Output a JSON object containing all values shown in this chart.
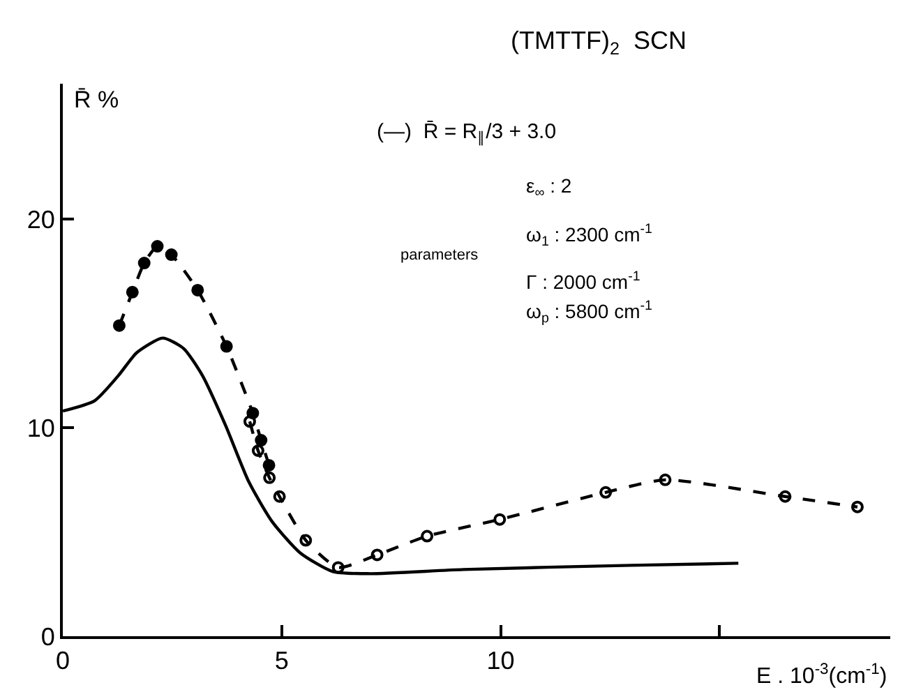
{
  "chart_data": {
    "type": "line",
    "title": "(TMTTF)$_{2}$  SCN",
    "xlabel": "E . 10$^{-3}$(cm$^{-1}$)",
    "ylabel": "R̄ %",
    "annotations": [
      "(—)  R̄ = R$_{∥}$/3 + 3.0",
      "parameters",
      "ε$_{∞}$ : 2",
      "ω$_{1}$ : 2300 cm$^{-1}$",
      "Γ : 2000 cm$^{-1}$",
      "ω$_{p}$ : 5800 cm$^{-1}$"
    ],
    "xlim": [
      0,
      18.9
    ],
    "ylim": [
      0,
      26.5
    ],
    "xticks": [
      0,
      5,
      10,
      {
        "value": 15,
        "label": null
      }
    ],
    "yticks": [
      0,
      10,
      20
    ],
    "series": [
      {
        "color": "#000000",
        "type": "line",
        "line_style": "solid",
        "marker": "none",
        "x": [
          0,
          0.73,
          1.27,
          1.69,
          2.28,
          2.76,
          3.19,
          3.72,
          4.25,
          4.78,
          5.42,
          6.17,
          7.02,
          9.15,
          12.98,
          15.43
        ],
        "values": [
          10.8,
          11.3,
          12.5,
          13.6,
          14.3,
          13.8,
          12.5,
          10.1,
          7.4,
          5.5,
          4.0,
          3.1,
          3.0,
          3.2,
          3.4,
          3.5
        ]
      },
      {
        "color": "#000000",
        "line_style": "dashed",
        "marker": "circle",
        "x": [
          1.29,
          1.59,
          1.86,
          2.16,
          2.48,
          3.08,
          3.74,
          4.34,
          4.53,
          4.71
        ],
        "values": [
          14.9,
          16.5,
          17.9,
          18.7,
          18.3,
          16.6,
          13.9,
          10.7,
          9.4,
          8.2
        ]
      },
      {
        "color": "#000000",
        "line_style": "dashed",
        "marker": "circle-open",
        "x": [
          4.27,
          4.46,
          4.72,
          4.95,
          5.55,
          6.29,
          7.18,
          8.32,
          9.98,
          12.4,
          13.76,
          16.5,
          18.15
        ],
        "values": [
          10.3,
          8.9,
          7.6,
          6.7,
          4.6,
          3.3,
          3.9,
          4.8,
          5.6,
          6.9,
          7.5,
          6.7,
          6.2
        ]
      }
    ]
  }
}
